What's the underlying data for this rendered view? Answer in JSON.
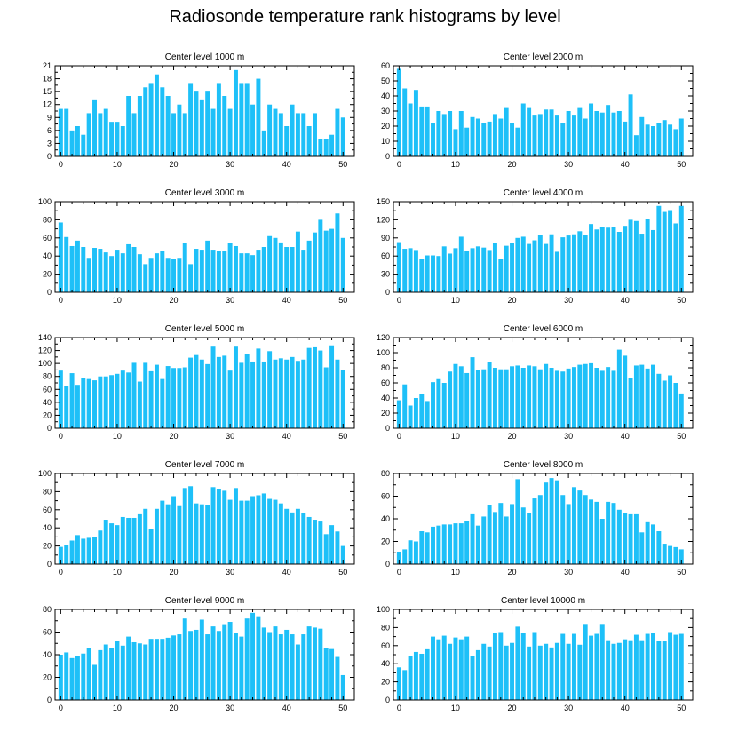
{
  "title": "Radiosonde temperature rank histograms by level",
  "colors": {
    "bar": "#1ec0f8",
    "axis": "#000000",
    "background": "#ffffff"
  },
  "chart_data": [
    {
      "type": "bar",
      "title": "Center level 1000 m",
      "xlabel": "",
      "ylabel": "",
      "xlim": [
        -1,
        52
      ],
      "ylim": [
        0,
        21
      ],
      "xticks": [
        0,
        10,
        20,
        30,
        40,
        50
      ],
      "yticks": [
        0,
        3,
        6,
        9,
        12,
        15,
        18,
        21
      ],
      "x_start": 0,
      "values": [
        11,
        11,
        6,
        7,
        5,
        10,
        13,
        10,
        11,
        8,
        8,
        7,
        14,
        10,
        14,
        16,
        17,
        19,
        16,
        14,
        10,
        12,
        10,
        17,
        15,
        13,
        15,
        11,
        17,
        14,
        11,
        20,
        17,
        17,
        12,
        18,
        6,
        12,
        11,
        10,
        7,
        12,
        10,
        10,
        7,
        10,
        4,
        4,
        5,
        11,
        9
      ]
    },
    {
      "type": "bar",
      "title": "Center level 2000 m",
      "xlabel": "",
      "ylabel": "",
      "xlim": [
        -1,
        52
      ],
      "ylim": [
        0,
        60
      ],
      "xticks": [
        0,
        10,
        20,
        30,
        40,
        50
      ],
      "yticks": [
        0,
        10,
        20,
        30,
        40,
        50,
        60
      ],
      "x_start": 0,
      "values": [
        58,
        45,
        35,
        44,
        33,
        33,
        22,
        30,
        28,
        30,
        18,
        30,
        19,
        26,
        25,
        22,
        23,
        28,
        25,
        32,
        22,
        19,
        35,
        32,
        27,
        28,
        31,
        31,
        27,
        22,
        30,
        27,
        32,
        25,
        35,
        30,
        29,
        34,
        29,
        30,
        23,
        41,
        14,
        26,
        21,
        20,
        22,
        24,
        21,
        18,
        25
      ]
    },
    {
      "type": "bar",
      "title": "Center level 3000 m",
      "xlabel": "",
      "ylabel": "",
      "xlim": [
        -1,
        52
      ],
      "ylim": [
        0,
        100
      ],
      "xticks": [
        0,
        10,
        20,
        30,
        40,
        50
      ],
      "yticks": [
        0,
        20,
        40,
        60,
        80,
        100
      ],
      "x_start": 0,
      "values": [
        77,
        61,
        51,
        57,
        50,
        38,
        49,
        48,
        44,
        40,
        47,
        43,
        53,
        50,
        42,
        31,
        38,
        43,
        46,
        38,
        37,
        38,
        54,
        31,
        48,
        47,
        57,
        47,
        46,
        46,
        54,
        51,
        43,
        43,
        41,
        47,
        50,
        62,
        60,
        55,
        50,
        50,
        67,
        47,
        57,
        66,
        80,
        68,
        70,
        87,
        60
      ]
    },
    {
      "type": "bar",
      "title": "Center level 4000 m",
      "xlabel": "",
      "ylabel": "",
      "xlim": [
        -1,
        52
      ],
      "ylim": [
        0,
        150
      ],
      "xticks": [
        0,
        10,
        20,
        30,
        40,
        50
      ],
      "yticks": [
        0,
        30,
        60,
        90,
        120,
        150
      ],
      "x_start": 0,
      "values": [
        83,
        72,
        73,
        70,
        55,
        61,
        61,
        60,
        76,
        64,
        73,
        92,
        69,
        73,
        76,
        74,
        70,
        81,
        55,
        77,
        82,
        90,
        92,
        80,
        86,
        95,
        80,
        96,
        67,
        91,
        94,
        96,
        101,
        95,
        113,
        104,
        108,
        107,
        108,
        100,
        110,
        120,
        118,
        97,
        122,
        103,
        143,
        133,
        136,
        114,
        143
      ]
    },
    {
      "type": "bar",
      "title": "Center level 5000 m",
      "xlabel": "",
      "ylabel": "",
      "xlim": [
        -1,
        52
      ],
      "ylim": [
        0,
        140
      ],
      "xticks": [
        0,
        10,
        20,
        30,
        40,
        50
      ],
      "yticks": [
        0,
        20,
        40,
        60,
        80,
        100,
        120,
        140
      ],
      "x_start": 0,
      "values": [
        89,
        65,
        85,
        67,
        78,
        76,
        74,
        80,
        80,
        82,
        84,
        89,
        86,
        101,
        72,
        101,
        88,
        98,
        76,
        96,
        93,
        93,
        94,
        109,
        113,
        106,
        99,
        126,
        110,
        112,
        89,
        126,
        101,
        115,
        103,
        123,
        103,
        119,
        106,
        108,
        106,
        110,
        104,
        106,
        124,
        125,
        120,
        94,
        128,
        106,
        90
      ]
    },
    {
      "type": "bar",
      "title": "Center level 6000 m",
      "xlabel": "",
      "ylabel": "",
      "xlim": [
        -1,
        52
      ],
      "ylim": [
        0,
        120
      ],
      "xticks": [
        0,
        10,
        20,
        30,
        40,
        50
      ],
      "yticks": [
        0,
        20,
        40,
        60,
        80,
        100,
        120
      ],
      "x_start": 0,
      "values": [
        37,
        58,
        30,
        40,
        45,
        36,
        61,
        65,
        60,
        75,
        85,
        82,
        73,
        94,
        77,
        78,
        88,
        80,
        78,
        78,
        82,
        83,
        80,
        83,
        82,
        78,
        85,
        80,
        76,
        75,
        79,
        81,
        84,
        85,
        86,
        80,
        76,
        81,
        76,
        104,
        96,
        66,
        83,
        84,
        79,
        84,
        72,
        63,
        70,
        60,
        46
      ]
    },
    {
      "type": "bar",
      "title": "Center level 7000 m",
      "xlabel": "",
      "ylabel": "",
      "xlim": [
        -1,
        52
      ],
      "ylim": [
        0,
        100
      ],
      "xticks": [
        0,
        10,
        20,
        30,
        40,
        50
      ],
      "yticks": [
        0,
        20,
        40,
        60,
        80,
        100
      ],
      "x_start": 0,
      "values": [
        19,
        21,
        26,
        32,
        28,
        29,
        30,
        37,
        49,
        45,
        43,
        52,
        51,
        51,
        55,
        61,
        39,
        61,
        70,
        66,
        75,
        64,
        84,
        86,
        67,
        66,
        65,
        85,
        83,
        81,
        71,
        84,
        70,
        70,
        75,
        76,
        78,
        72,
        71,
        67,
        61,
        57,
        61,
        56,
        52,
        49,
        47,
        33,
        43,
        36,
        20
      ]
    },
    {
      "type": "bar",
      "title": "Center level 8000 m",
      "xlabel": "",
      "ylabel": "",
      "xlim": [
        -1,
        52
      ],
      "ylim": [
        0,
        80
      ],
      "xticks": [
        0,
        10,
        20,
        30,
        40,
        50
      ],
      "yticks": [
        0,
        20,
        40,
        60,
        80
      ],
      "x_start": 0,
      "values": [
        11,
        13,
        21,
        20,
        29,
        28,
        33,
        34,
        35,
        35,
        36,
        36,
        38,
        44,
        34,
        42,
        52,
        46,
        54,
        42,
        53,
        75,
        50,
        45,
        58,
        61,
        72,
        76,
        74,
        61,
        53,
        68,
        65,
        61,
        57,
        55,
        40,
        55,
        54,
        48,
        45,
        44,
        44,
        28,
        37,
        35,
        29,
        18,
        16,
        15,
        13
      ]
    },
    {
      "type": "bar",
      "title": "Center level 9000 m",
      "xlabel": "",
      "ylabel": "",
      "xlim": [
        -1,
        52
      ],
      "ylim": [
        0,
        80
      ],
      "xticks": [
        0,
        10,
        20,
        30,
        40,
        50
      ],
      "yticks": [
        0,
        20,
        40,
        60,
        80
      ],
      "x_start": 0,
      "values": [
        40,
        42,
        37,
        39,
        41,
        46,
        31,
        44,
        49,
        46,
        52,
        48,
        56,
        51,
        50,
        49,
        54,
        54,
        54,
        55,
        57,
        58,
        72,
        61,
        62,
        71,
        58,
        65,
        61,
        67,
        69,
        59,
        56,
        72,
        77,
        74,
        64,
        60,
        65,
        58,
        62,
        58,
        49,
        58,
        65,
        64,
        63,
        46,
        45,
        38,
        22
      ]
    },
    {
      "type": "bar",
      "title": "Center level 10000 m",
      "xlabel": "",
      "ylabel": "",
      "xlim": [
        -1,
        52
      ],
      "ylim": [
        0,
        100
      ],
      "xticks": [
        0,
        10,
        20,
        30,
        40,
        50
      ],
      "yticks": [
        0,
        20,
        40,
        60,
        80,
        100
      ],
      "x_start": 0,
      "values": [
        36,
        33,
        49,
        53,
        51,
        56,
        70,
        67,
        71,
        62,
        69,
        67,
        70,
        49,
        55,
        62,
        59,
        74,
        75,
        60,
        63,
        81,
        74,
        59,
        75,
        60,
        62,
        58,
        63,
        73,
        62,
        73,
        61,
        84,
        71,
        73,
        84,
        66,
        62,
        63,
        67,
        66,
        72,
        66,
        73,
        74,
        65,
        65,
        75,
        72,
        73
      ]
    }
  ]
}
